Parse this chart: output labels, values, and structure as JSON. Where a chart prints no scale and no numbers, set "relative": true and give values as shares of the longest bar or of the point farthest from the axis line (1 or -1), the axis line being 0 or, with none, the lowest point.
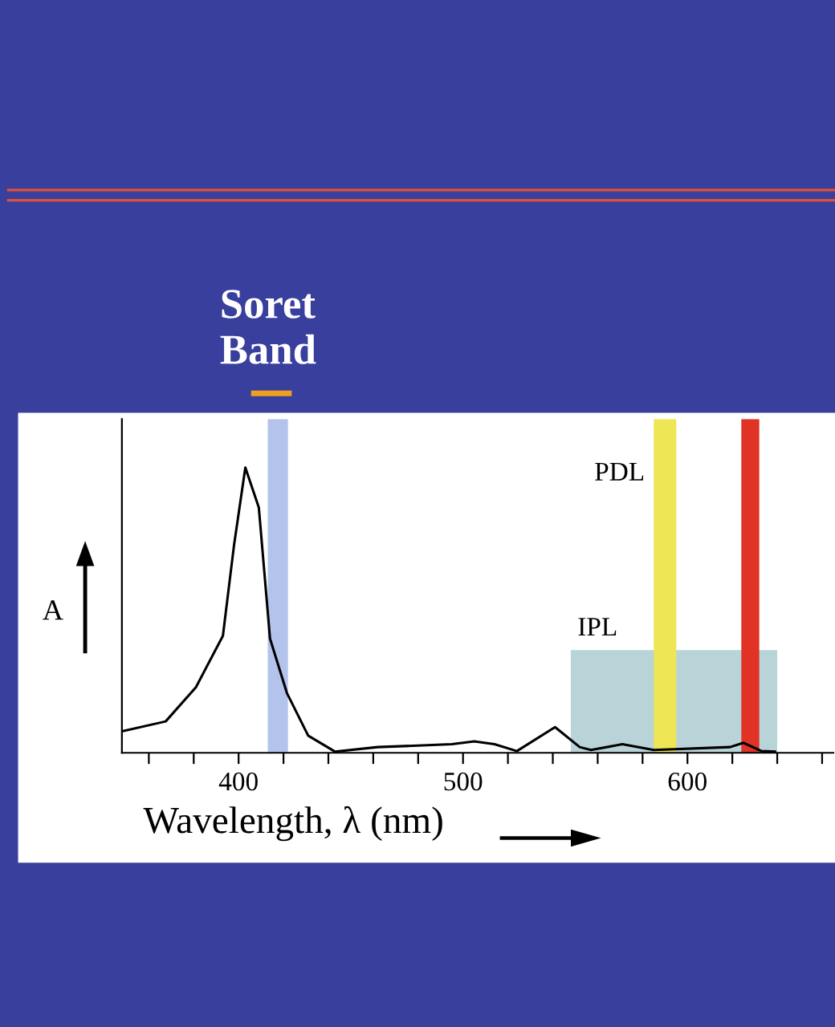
{
  "chart_data": {
    "type": "line",
    "title": "Soret Band",
    "xlabel": "Wavelength, λ (nm)",
    "ylabel": "A",
    "relative": true,
    "xlim": [
      348,
      665
    ],
    "xticks": [
      {
        "value": 360,
        "label": null
      },
      {
        "value": 380,
        "label": null
      },
      400,
      {
        "value": 420,
        "label": null
      },
      {
        "value": 440,
        "label": null
      },
      {
        "value": 460,
        "label": null
      },
      {
        "value": 480,
        "label": null
      },
      500,
      {
        "value": 520,
        "label": null
      },
      {
        "value": 540,
        "label": null
      },
      {
        "value": 560,
        "label": null
      },
      {
        "value": 580,
        "label": null
      },
      600,
      {
        "value": 620,
        "label": null
      },
      {
        "value": 640,
        "label": null
      },
      {
        "value": 660,
        "label": null
      }
    ],
    "grid": false,
    "series": [
      {
        "type": "area",
        "color": "#b9d4d8",
        "x": [
          548,
          640
        ],
        "values": [
          0.36,
          0.36
        ]
      },
      {
        "color": "#000000",
        "x": [
          348,
          367.5,
          381,
          393,
          398,
          403,
          409,
          414,
          421.5,
          431,
          443,
          462,
          495,
          505,
          514,
          524,
          541,
          552,
          557,
          571,
          585,
          619,
          625,
          633,
          639
        ],
        "values": [
          0.075,
          0.11,
          0.23,
          0.41,
          0.73,
          1.0,
          0.86,
          0.4,
          0.21,
          0.06,
          0.004,
          0.02,
          0.03,
          0.04,
          0.03,
          0.006,
          0.09,
          0.02,
          0.01,
          0.03,
          0.01,
          0.02,
          0.035,
          0.006,
          0.004
        ]
      }
    ],
    "bands": [
      {
        "axis": "x",
        "from": 413,
        "to": 422,
        "color": "#b3c3ec"
      },
      {
        "axis": "x",
        "from": 585,
        "to": 595,
        "color": "#eee654",
        "label": "PDL"
      },
      {
        "axis": "x",
        "from": 624,
        "to": 632,
        "color": "#e03326"
      }
    ],
    "annotations": [
      {
        "text": "IPL",
        "x": 548,
        "y": 0.36
      }
    ]
  }
}
